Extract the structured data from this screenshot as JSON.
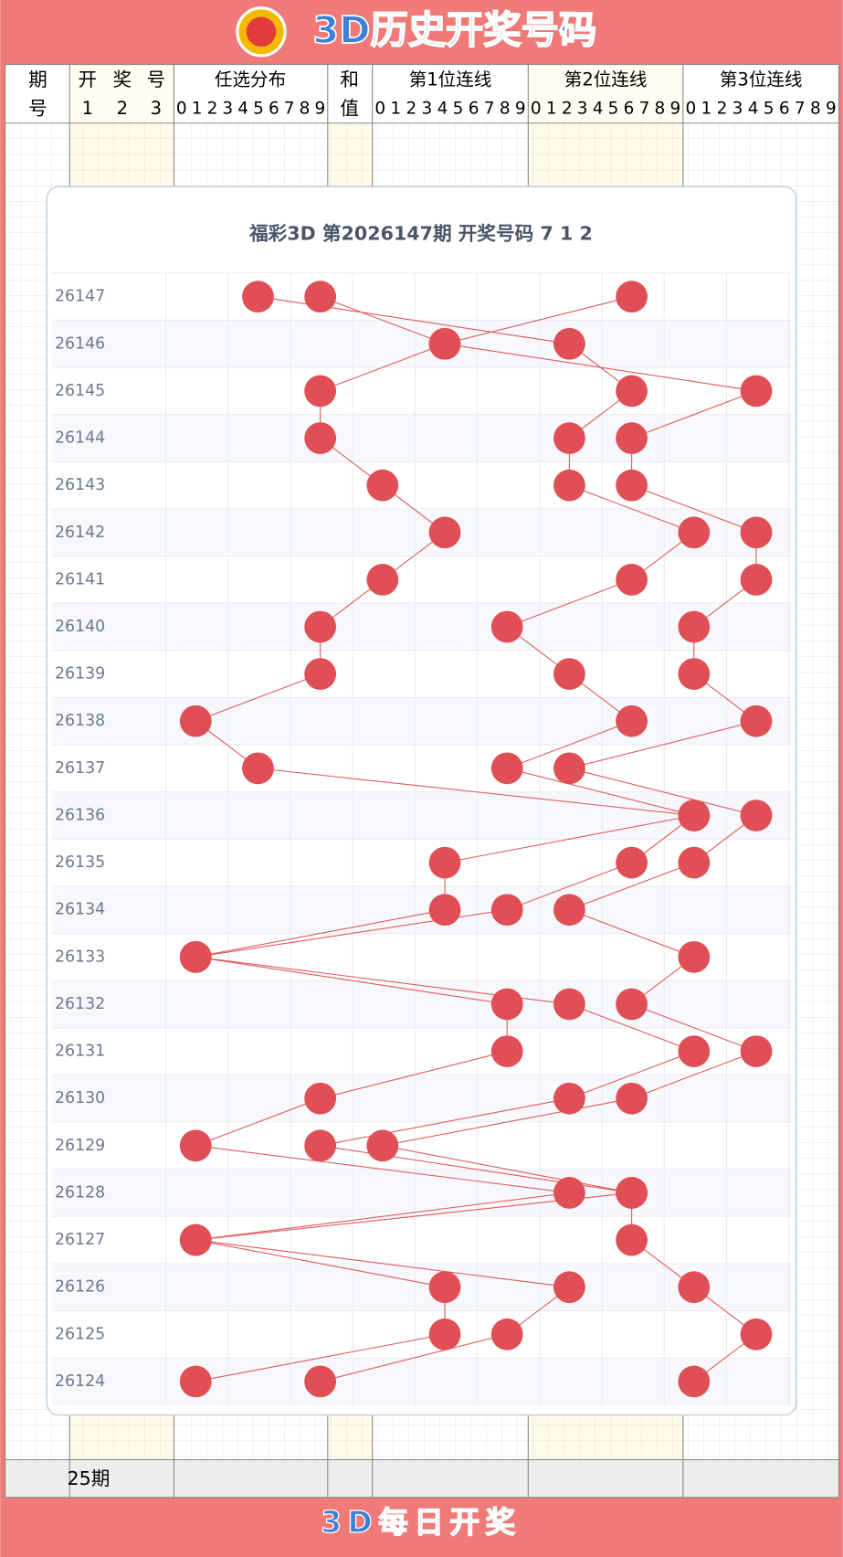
{
  "header": {
    "title": "3D历史开奖号码"
  },
  "table": {
    "period_head": [
      "期",
      "号"
    ],
    "draw_head": [
      "开",
      "奖",
      "号"
    ],
    "draw_positions": [
      "1",
      "2",
      "3"
    ],
    "distribution_head": "任选分布",
    "sum_head": [
      "和",
      "值"
    ],
    "line_heads": [
      "第1位连线",
      "第2位连线",
      "第3位连线"
    ],
    "digits": [
      "0",
      "1",
      "2",
      "3",
      "4",
      "5",
      "6",
      "7",
      "8",
      "9"
    ],
    "footer": "25期"
  },
  "card": {
    "title": "福彩3D 第2026147期 开奖号码 7 1 2",
    "rows": [
      {
        "period": "26147",
        "digits": [
          7,
          1,
          2
        ]
      },
      {
        "period": "26146",
        "digits": [
          4,
          6,
          4
        ]
      },
      {
        "period": "26145",
        "digits": [
          2,
          7,
          9
        ]
      },
      {
        "period": "26144",
        "digits": [
          2,
          6,
          7
        ]
      },
      {
        "period": "26143",
        "digits": [
          3,
          6,
          7
        ]
      },
      {
        "period": "26142",
        "digits": [
          4,
          8,
          9
        ]
      },
      {
        "period": "26141",
        "digits": [
          3,
          7,
          9
        ]
      },
      {
        "period": "26140",
        "digits": [
          2,
          5,
          8
        ]
      },
      {
        "period": "26139",
        "digits": [
          2,
          6,
          8
        ]
      },
      {
        "period": "26138",
        "digits": [
          0,
          7,
          9
        ]
      },
      {
        "period": "26137",
        "digits": [
          1,
          5,
          6
        ]
      },
      {
        "period": "26136",
        "digits": [
          8,
          8,
          9
        ]
      },
      {
        "period": "26135",
        "digits": [
          4,
          7,
          8
        ]
      },
      {
        "period": "26134",
        "digits": [
          4,
          5,
          6
        ]
      },
      {
        "period": "26133",
        "digits": [
          0,
          0,
          8
        ]
      },
      {
        "period": "26132",
        "digits": [
          5,
          6,
          7
        ]
      },
      {
        "period": "26131",
        "digits": [
          5,
          8,
          9
        ]
      },
      {
        "period": "26130",
        "digits": [
          2,
          6,
          7
        ]
      },
      {
        "period": "26129",
        "digits": [
          0,
          2,
          3
        ]
      },
      {
        "period": "26128",
        "digits": [
          6,
          7,
          7
        ]
      },
      {
        "period": "26127",
        "digits": [
          0,
          0,
          7
        ]
      },
      {
        "period": "26126",
        "digits": [
          4,
          6,
          8
        ]
      },
      {
        "period": "26125",
        "digits": [
          4,
          5,
          9
        ]
      },
      {
        "period": "26124",
        "digits": [
          0,
          2,
          8
        ]
      }
    ]
  },
  "footer": {
    "title": "3D每日开奖"
  }
}
